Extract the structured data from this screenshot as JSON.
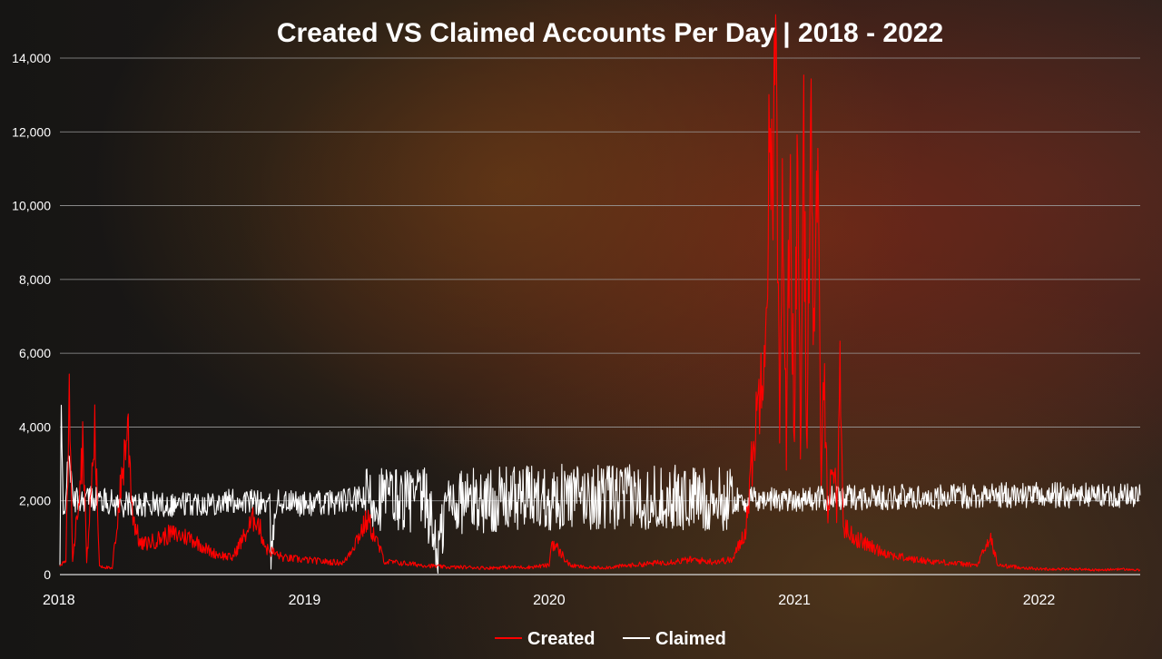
{
  "chart_data": {
    "type": "line",
    "title": "Created VS Claimed Accounts Per Day | 2018 - 2022",
    "xlabel": "",
    "ylabel": "",
    "x_ticks": [
      "2018",
      "2019",
      "2020",
      "2021",
      "2022"
    ],
    "x_range": [
      "2018-01-01",
      "2022-06-01"
    ],
    "ylim": [
      0,
      14000
    ],
    "y_ticks": [
      0,
      2000,
      4000,
      6000,
      8000,
      10000,
      12000,
      14000
    ],
    "y_tick_labels": [
      "0",
      "2,000",
      "4,000",
      "6,000",
      "8,000",
      "10,000",
      "12,000",
      "14,000"
    ],
    "grid": "horizontal",
    "legend_position": "bottom",
    "series": [
      {
        "name": "Created",
        "color": "#ff0000",
        "points": [
          [
            "2018-01-01",
            200
          ],
          [
            "2018-01-10",
            400
          ],
          [
            "2018-01-15",
            5100
          ],
          [
            "2018-01-20",
            300
          ],
          [
            "2018-02-05",
            3700
          ],
          [
            "2018-02-10",
            300
          ],
          [
            "2018-02-22",
            3900
          ],
          [
            "2018-03-01",
            250
          ],
          [
            "2018-03-20",
            150
          ],
          [
            "2018-04-12",
            4100
          ],
          [
            "2018-04-20",
            1600
          ],
          [
            "2018-05-01",
            800
          ],
          [
            "2018-05-20",
            900
          ],
          [
            "2018-06-15",
            1100
          ],
          [
            "2018-07-15",
            1000
          ],
          [
            "2018-08-15",
            600
          ],
          [
            "2018-09-15",
            450
          ],
          [
            "2018-10-20",
            1600
          ],
          [
            "2018-11-05",
            700
          ],
          [
            "2018-12-01",
            450
          ],
          [
            "2019-01-01",
            400
          ],
          [
            "2019-02-01",
            350
          ],
          [
            "2019-03-01",
            320
          ],
          [
            "2019-04-05",
            1500
          ],
          [
            "2019-05-01",
            350
          ],
          [
            "2019-06-01",
            300
          ],
          [
            "2019-07-01",
            250
          ],
          [
            "2019-08-01",
            200
          ],
          [
            "2019-09-01",
            200
          ],
          [
            "2019-10-01",
            180
          ],
          [
            "2019-11-01",
            200
          ],
          [
            "2019-12-01",
            200
          ],
          [
            "2020-01-01",
            250
          ],
          [
            "2020-01-05",
            900
          ],
          [
            "2020-02-01",
            250
          ],
          [
            "2020-03-01",
            180
          ],
          [
            "2020-04-01",
            200
          ],
          [
            "2020-05-01",
            250
          ],
          [
            "2020-06-01",
            300
          ],
          [
            "2020-07-01",
            350
          ],
          [
            "2020-08-01",
            400
          ],
          [
            "2020-09-01",
            350
          ],
          [
            "2020-10-01",
            400
          ],
          [
            "2020-10-20",
            1200
          ],
          [
            "2020-11-01",
            3500
          ],
          [
            "2020-11-10",
            5000
          ],
          [
            "2020-11-20",
            7500
          ],
          [
            "2020-11-25",
            11500
          ],
          [
            "2020-12-01",
            12000
          ],
          [
            "2020-12-05",
            13500
          ],
          [
            "2020-12-10",
            3200
          ],
          [
            "2020-12-15",
            11000
          ],
          [
            "2020-12-20",
            3000
          ],
          [
            "2020-12-25",
            11200
          ],
          [
            "2021-01-01",
            4000
          ],
          [
            "2021-01-05",
            10700
          ],
          [
            "2021-01-10",
            3500
          ],
          [
            "2021-01-15",
            11000
          ],
          [
            "2021-01-20",
            3300
          ],
          [
            "2021-01-25",
            14000
          ],
          [
            "2021-01-30",
            6000
          ],
          [
            "2021-02-05",
            10200
          ],
          [
            "2021-02-10",
            2800
          ],
          [
            "2021-02-15",
            5200
          ],
          [
            "2021-02-20",
            1800
          ],
          [
            "2021-03-01",
            3200
          ],
          [
            "2021-03-05",
            1500
          ],
          [
            "2021-03-10",
            5600
          ],
          [
            "2021-03-15",
            1300
          ],
          [
            "2021-04-01",
            1000
          ],
          [
            "2021-05-01",
            700
          ],
          [
            "2021-06-01",
            500
          ],
          [
            "2021-07-01",
            400
          ],
          [
            "2021-08-01",
            350
          ],
          [
            "2021-09-01",
            300
          ],
          [
            "2021-10-01",
            250
          ],
          [
            "2021-10-20",
            1000
          ],
          [
            "2021-11-01",
            250
          ],
          [
            "2021-12-01",
            200
          ],
          [
            "2022-01-01",
            150
          ],
          [
            "2022-02-01",
            150
          ],
          [
            "2022-03-01",
            150
          ],
          [
            "2022-04-01",
            120
          ],
          [
            "2022-05-01",
            150
          ],
          [
            "2022-06-01",
            120
          ]
        ]
      },
      {
        "name": "Claimed",
        "color": "#ffffff",
        "points": [
          [
            "2018-01-01",
            200
          ],
          [
            "2018-01-03",
            4300
          ],
          [
            "2018-01-06",
            1500
          ],
          [
            "2018-01-15",
            3300
          ],
          [
            "2018-01-20",
            2000
          ],
          [
            "2018-02-15",
            2100
          ],
          [
            "2018-04-01",
            1900
          ],
          [
            "2018-06-01",
            1900
          ],
          [
            "2018-08-01",
            1950
          ],
          [
            "2018-10-01",
            2000
          ],
          [
            "2018-11-10",
            1900
          ],
          [
            "2018-11-12",
            400
          ],
          [
            "2018-11-20",
            2000
          ],
          [
            "2019-01-01",
            1900
          ],
          [
            "2019-03-01",
            2000
          ],
          [
            "2019-05-01",
            2100
          ],
          [
            "2019-07-01",
            2000
          ],
          [
            "2019-07-20",
            600
          ],
          [
            "2019-08-01",
            2000
          ],
          [
            "2019-10-01",
            2000
          ],
          [
            "2019-12-01",
            2100
          ],
          [
            "2020-02-01",
            2100
          ],
          [
            "2020-04-01",
            2100
          ],
          [
            "2020-06-01",
            2100
          ],
          [
            "2020-08-01",
            2050
          ],
          [
            "2020-10-01",
            2000
          ],
          [
            "2020-12-01",
            2050
          ],
          [
            "2021-02-01",
            2050
          ],
          [
            "2021-04-01",
            2100
          ],
          [
            "2021-06-01",
            2100
          ],
          [
            "2021-08-01",
            2100
          ],
          [
            "2021-10-01",
            2150
          ],
          [
            "2021-12-01",
            2150
          ],
          [
            "2022-02-01",
            2150
          ],
          [
            "2022-04-01",
            2150
          ],
          [
            "2022-06-01",
            2150
          ]
        ]
      }
    ]
  }
}
